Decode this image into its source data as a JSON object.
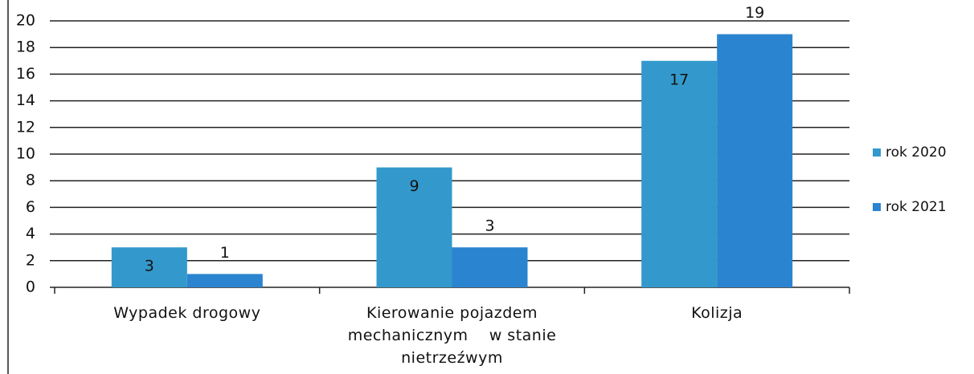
{
  "chart_data": {
    "type": "bar",
    "categories": [
      "Wypadek drogowy",
      "Kierowanie pojazdem mechanicznym    w stanie nietrzeźwym",
      "Kolizja"
    ],
    "series": [
      {
        "name": "rok 2020",
        "color": "#3399cc",
        "values": [
          3,
          9,
          17
        ]
      },
      {
        "name": "rok 2021",
        "color": "#2b84cf",
        "values": [
          1,
          3,
          19
        ]
      }
    ],
    "ylim": [
      0,
      20
    ],
    "yticks": [
      0,
      2,
      4,
      6,
      8,
      10,
      12,
      14,
      16,
      18,
      20
    ],
    "grid": true,
    "legend": "right"
  }
}
